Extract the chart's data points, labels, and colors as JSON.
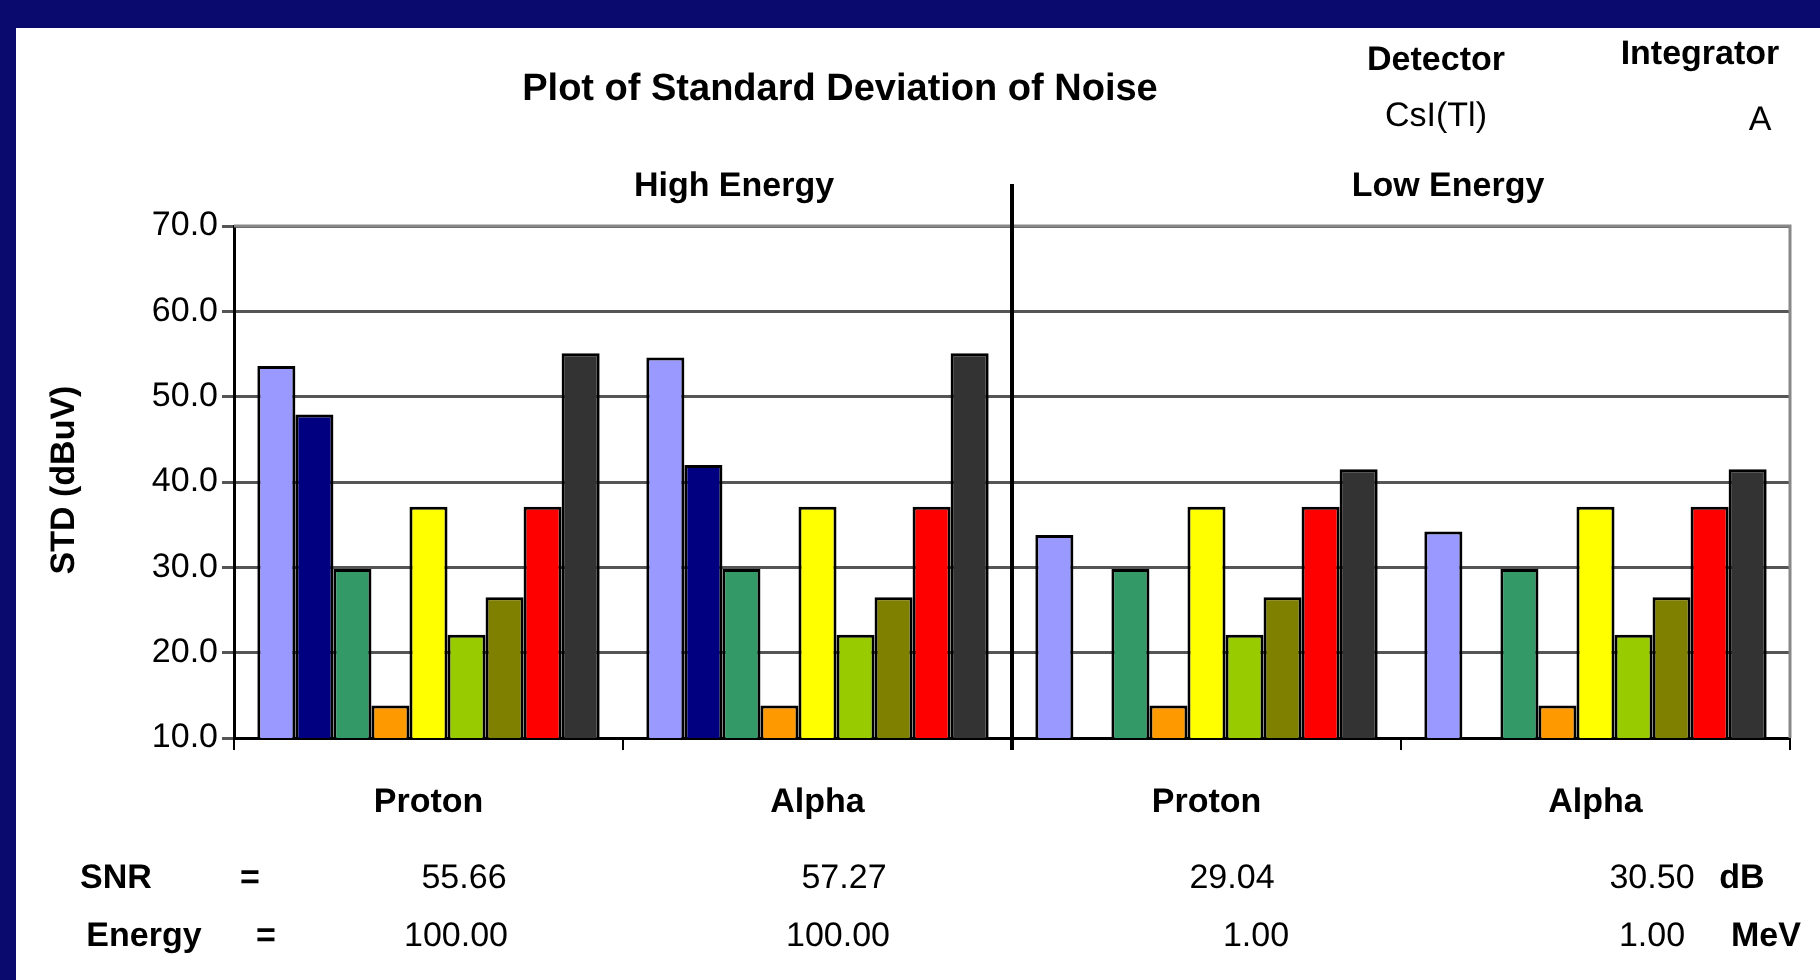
{
  "chart_data": {
    "type": "bar",
    "title": "Plot of Standard Deviation of Noise",
    "ylabel": "STD (dBuV)",
    "categories": [
      "Proton",
      "Alpha",
      "Proton",
      "Alpha"
    ],
    "series": [
      {
        "color": "#9999ff",
        "values": [
          53.6,
          54.6,
          33.8,
          34.2
        ]
      },
      {
        "color": "#000080",
        "values": [
          47.9,
          42.0,
          null,
          null
        ]
      },
      {
        "color": "#339966",
        "values": [
          29.8,
          29.8,
          29.8,
          29.8
        ]
      },
      {
        "color": "#ff9900",
        "values": [
          13.8,
          13.8,
          13.8,
          13.8
        ]
      },
      {
        "color": "#ffff00",
        "values": [
          37.1,
          37.1,
          37.1,
          37.1
        ]
      },
      {
        "color": "#99cc00",
        "values": [
          22.1,
          22.1,
          22.1,
          22.1
        ]
      },
      {
        "color": "#808000",
        "values": [
          26.5,
          26.5,
          26.5,
          26.5
        ]
      },
      {
        "color": "#ff0000",
        "values": [
          37.1,
          37.1,
          37.1,
          37.1
        ]
      },
      {
        "color": "#333333",
        "values": [
          55.1,
          55.1,
          41.5,
          41.5
        ]
      }
    ],
    "ylim": [
      10,
      70
    ],
    "yticks": [
      {
        "value": 10,
        "label": "10.0"
      },
      {
        "value": 20,
        "label": "20.0"
      },
      {
        "value": 30,
        "label": "30.0"
      },
      {
        "value": 40,
        "label": "40.0"
      },
      {
        "value": 50,
        "label": "50.0"
      },
      {
        "value": 60,
        "label": "60.0"
      },
      {
        "value": 70,
        "label": "70.0"
      }
    ],
    "grid": "y",
    "legend": false,
    "annotations": [
      "Detector",
      "CsI(Tl)",
      "Integrator",
      "A",
      "High Energy",
      "Low Energy",
      "SNR",
      "=",
      "55.66",
      "57.27",
      "29.04",
      "30.50",
      "dB",
      "Energy",
      "=",
      "100.00",
      "100.00",
      "1.00",
      "1.00",
      "MeV"
    ]
  }
}
